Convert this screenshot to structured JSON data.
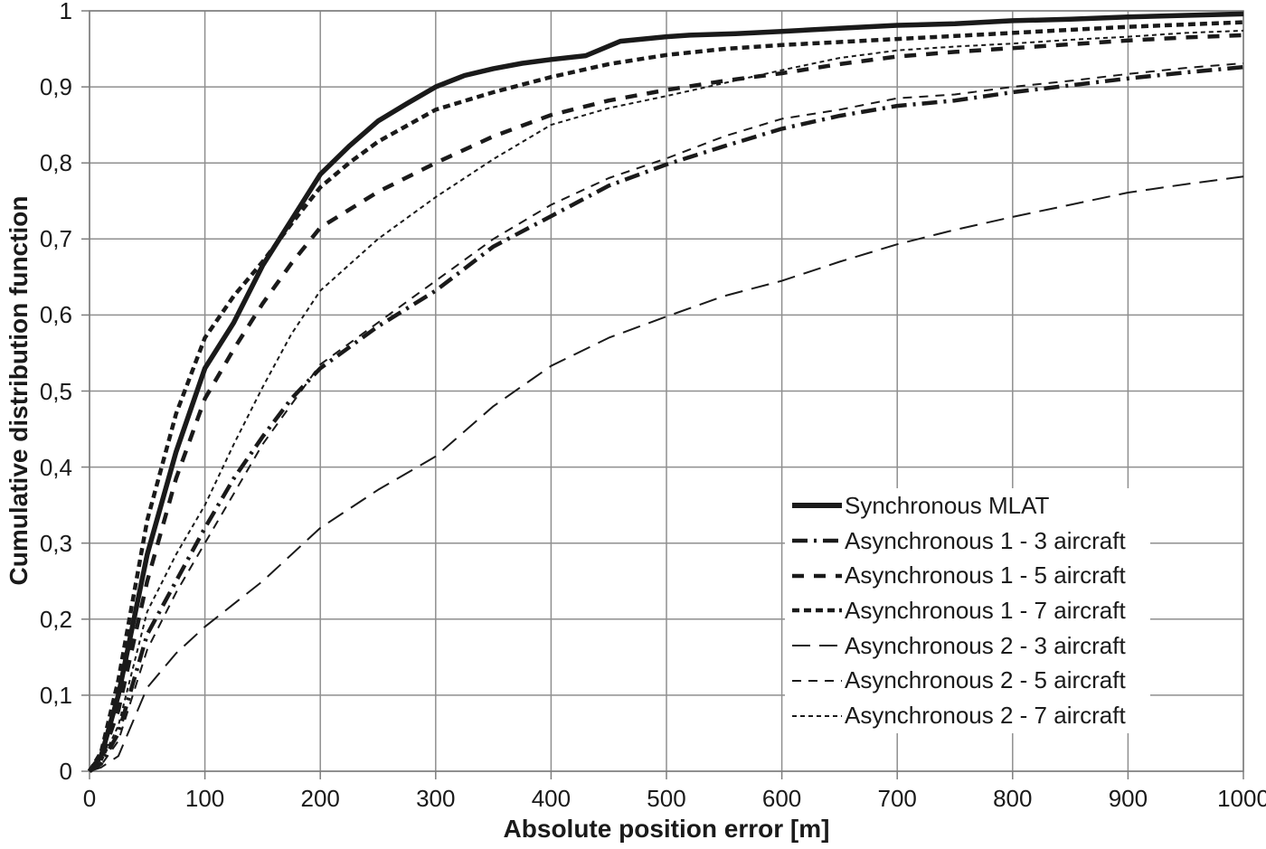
{
  "colors": {
    "line": "#1a1a1a",
    "grid": "#8f8f8f",
    "axis": "#7d7d7d",
    "background": "#ffffff",
    "text": "#1a1a1a",
    "legend_background": "#ffffff"
  },
  "chart_data": {
    "type": "line",
    "title": "",
    "xlabel": "Absolute position error [m]",
    "ylabel": "Cumulative distribution function",
    "xlim": [
      0,
      1000
    ],
    "ylim": [
      0,
      1
    ],
    "grid": true,
    "legend_position": "inside-lower-right",
    "x_ticks": [
      0,
      100,
      200,
      300,
      400,
      500,
      600,
      700,
      800,
      900,
      1000
    ],
    "x_tick_labels": [
      "0",
      "100",
      "200",
      "300",
      "400",
      "500",
      "600",
      "700",
      "800",
      "900",
      "1000"
    ],
    "y_ticks": [
      0,
      0.1,
      0.2,
      0.3,
      0.4,
      0.5,
      0.6,
      0.7,
      0.8,
      0.9,
      1
    ],
    "y_tick_labels": [
      "0",
      "0,1",
      "0,2",
      "0,3",
      "0,4",
      "0,5",
      "0,6",
      "0,7",
      "0,8",
      "0,9",
      "1"
    ],
    "series": [
      {
        "name": "Synchronous MLAT",
        "style": "solid-thick",
        "points": [
          [
            0,
            0
          ],
          [
            10,
            0.02
          ],
          [
            25,
            0.1
          ],
          [
            50,
            0.285
          ],
          [
            75,
            0.42
          ],
          [
            100,
            0.53
          ],
          [
            125,
            0.59
          ],
          [
            150,
            0.665
          ],
          [
            175,
            0.725
          ],
          [
            200,
            0.785
          ],
          [
            225,
            0.822
          ],
          [
            250,
            0.855
          ],
          [
            275,
            0.878
          ],
          [
            300,
            0.9
          ],
          [
            325,
            0.915
          ],
          [
            350,
            0.924
          ],
          [
            375,
            0.931
          ],
          [
            400,
            0.936
          ],
          [
            430,
            0.941
          ],
          [
            460,
            0.96
          ],
          [
            500,
            0.966
          ],
          [
            520,
            0.968
          ],
          [
            560,
            0.97
          ],
          [
            600,
            0.973
          ],
          [
            650,
            0.977
          ],
          [
            700,
            0.981
          ],
          [
            750,
            0.983
          ],
          [
            800,
            0.987
          ],
          [
            850,
            0.989
          ],
          [
            900,
            0.992
          ],
          [
            950,
            0.994
          ],
          [
            1000,
            0.996
          ]
        ]
      },
      {
        "name": "Asynchronous 1 - 3 aircraft",
        "style": "dashdot-thick",
        "points": [
          [
            0,
            0
          ],
          [
            10,
            0.01
          ],
          [
            25,
            0.05
          ],
          [
            50,
            0.18
          ],
          [
            75,
            0.25
          ],
          [
            100,
            0.32
          ],
          [
            125,
            0.385
          ],
          [
            150,
            0.44
          ],
          [
            175,
            0.49
          ],
          [
            200,
            0.53
          ],
          [
            250,
            0.585
          ],
          [
            300,
            0.632
          ],
          [
            350,
            0.69
          ],
          [
            400,
            0.73
          ],
          [
            450,
            0.77
          ],
          [
            500,
            0.798
          ],
          [
            550,
            0.822
          ],
          [
            600,
            0.845
          ],
          [
            650,
            0.862
          ],
          [
            700,
            0.875
          ],
          [
            750,
            0.882
          ],
          [
            800,
            0.893
          ],
          [
            850,
            0.902
          ],
          [
            900,
            0.911
          ],
          [
            950,
            0.919
          ],
          [
            1000,
            0.926
          ]
        ]
      },
      {
        "name": "Asynchronous 1 - 5 aircraft",
        "style": "dash-thick",
        "points": [
          [
            0,
            0
          ],
          [
            10,
            0.015
          ],
          [
            25,
            0.08
          ],
          [
            50,
            0.25
          ],
          [
            75,
            0.385
          ],
          [
            100,
            0.49
          ],
          [
            125,
            0.555
          ],
          [
            150,
            0.615
          ],
          [
            175,
            0.668
          ],
          [
            200,
            0.715
          ],
          [
            250,
            0.762
          ],
          [
            300,
            0.8
          ],
          [
            350,
            0.835
          ],
          [
            400,
            0.863
          ],
          [
            450,
            0.882
          ],
          [
            500,
            0.896
          ],
          [
            550,
            0.908
          ],
          [
            600,
            0.918
          ],
          [
            650,
            0.93
          ],
          [
            700,
            0.94
          ],
          [
            750,
            0.946
          ],
          [
            800,
            0.951
          ],
          [
            850,
            0.956
          ],
          [
            900,
            0.961
          ],
          [
            950,
            0.965
          ],
          [
            1000,
            0.968
          ]
        ]
      },
      {
        "name": "Asynchronous 1 - 7 aircraft",
        "style": "shortdash-thick",
        "points": [
          [
            0,
            0
          ],
          [
            10,
            0.025
          ],
          [
            25,
            0.12
          ],
          [
            50,
            0.33
          ],
          [
            75,
            0.47
          ],
          [
            100,
            0.57
          ],
          [
            125,
            0.625
          ],
          [
            150,
            0.67
          ],
          [
            175,
            0.72
          ],
          [
            200,
            0.768
          ],
          [
            225,
            0.8
          ],
          [
            250,
            0.828
          ],
          [
            300,
            0.87
          ],
          [
            350,
            0.893
          ],
          [
            400,
            0.913
          ],
          [
            450,
            0.93
          ],
          [
            500,
            0.942
          ],
          [
            550,
            0.95
          ],
          [
            600,
            0.955
          ],
          [
            650,
            0.959
          ],
          [
            700,
            0.963
          ],
          [
            750,
            0.967
          ],
          [
            800,
            0.971
          ],
          [
            850,
            0.975
          ],
          [
            900,
            0.979
          ],
          [
            950,
            0.982
          ],
          [
            1000,
            0.985
          ]
        ]
      },
      {
        "name": "Asynchronous 2 - 3 aircraft",
        "style": "longdash-thin",
        "points": [
          [
            0,
            0
          ],
          [
            10,
            0.005
          ],
          [
            25,
            0.02
          ],
          [
            50,
            0.11
          ],
          [
            75,
            0.155
          ],
          [
            100,
            0.19
          ],
          [
            150,
            0.25
          ],
          [
            200,
            0.32
          ],
          [
            250,
            0.37
          ],
          [
            300,
            0.414
          ],
          [
            350,
            0.48
          ],
          [
            400,
            0.533
          ],
          [
            450,
            0.57
          ],
          [
            500,
            0.598
          ],
          [
            550,
            0.625
          ],
          [
            600,
            0.645
          ],
          [
            650,
            0.67
          ],
          [
            700,
            0.693
          ],
          [
            750,
            0.712
          ],
          [
            800,
            0.729
          ],
          [
            850,
            0.745
          ],
          [
            900,
            0.761
          ],
          [
            950,
            0.772
          ],
          [
            1000,
            0.782
          ]
        ]
      },
      {
        "name": "Asynchronous 2 - 5 aircraft",
        "style": "dash-thin",
        "points": [
          [
            0,
            0
          ],
          [
            10,
            0.008
          ],
          [
            25,
            0.04
          ],
          [
            50,
            0.16
          ],
          [
            75,
            0.235
          ],
          [
            100,
            0.3
          ],
          [
            150,
            0.43
          ],
          [
            200,
            0.535
          ],
          [
            250,
            0.59
          ],
          [
            300,
            0.645
          ],
          [
            350,
            0.7
          ],
          [
            400,
            0.745
          ],
          [
            450,
            0.78
          ],
          [
            500,
            0.806
          ],
          [
            550,
            0.835
          ],
          [
            600,
            0.858
          ],
          [
            650,
            0.87
          ],
          [
            700,
            0.885
          ],
          [
            750,
            0.89
          ],
          [
            800,
            0.9
          ],
          [
            850,
            0.908
          ],
          [
            900,
            0.917
          ],
          [
            950,
            0.925
          ],
          [
            1000,
            0.931
          ]
        ]
      },
      {
        "name": "Asynchronous 2 - 7 aircraft",
        "style": "shortdash-thin",
        "points": [
          [
            0,
            0
          ],
          [
            10,
            0.012
          ],
          [
            25,
            0.06
          ],
          [
            50,
            0.21
          ],
          [
            75,
            0.285
          ],
          [
            100,
            0.35
          ],
          [
            125,
            0.43
          ],
          [
            150,
            0.505
          ],
          [
            175,
            0.575
          ],
          [
            200,
            0.632
          ],
          [
            250,
            0.7
          ],
          [
            300,
            0.755
          ],
          [
            350,
            0.805
          ],
          [
            400,
            0.85
          ],
          [
            450,
            0.872
          ],
          [
            500,
            0.888
          ],
          [
            550,
            0.905
          ],
          [
            600,
            0.922
          ],
          [
            650,
            0.938
          ],
          [
            700,
            0.948
          ],
          [
            750,
            0.953
          ],
          [
            800,
            0.957
          ],
          [
            850,
            0.962
          ],
          [
            900,
            0.966
          ],
          [
            950,
            0.971
          ],
          [
            1000,
            0.974
          ]
        ]
      }
    ]
  }
}
